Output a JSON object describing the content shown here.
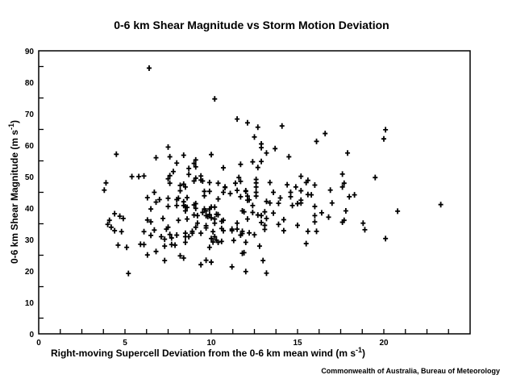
{
  "chart_data": {
    "type": "scatter",
    "title": "0-6 km Shear Magnitude vs Storm Motion Deviation",
    "xlabel": {
      "main": "Right-moving Supercell Deviation from the 0-6 km mean wind (m s",
      "sup": "-1",
      "end": ")"
    },
    "ylabel": {
      "main": "0-6 km Shear Magnitude (m s",
      "sup": "-1",
      "end": ")"
    },
    "xlim": [
      0,
      25
    ],
    "ylim": [
      0,
      90
    ],
    "xticks": [
      "0",
      "5",
      "10",
      "15",
      "20"
    ],
    "yticks": [
      "0",
      "10",
      "20",
      "30",
      "40",
      "50",
      "60",
      "70",
      "80",
      "90"
    ],
    "grid": false,
    "marker": "plus",
    "color": "#000000",
    "points": [
      [
        6.4,
        84.5
      ],
      [
        10.2,
        74.7
      ],
      [
        11.5,
        68.3
      ],
      [
        12.1,
        67.1
      ],
      [
        4.5,
        57.1
      ],
      [
        6.8,
        56.0
      ],
      [
        7.5,
        59.4
      ],
      [
        7.6,
        56.3
      ],
      [
        8.4,
        56.8
      ],
      [
        10.0,
        57.0
      ],
      [
        3.9,
        48.0
      ],
      [
        5.4,
        50.0
      ],
      [
        5.8,
        50.0
      ],
      [
        6.1,
        50.2
      ],
      [
        7.5,
        49.3
      ],
      [
        7.6,
        50.3
      ],
      [
        7.6,
        47.9
      ],
      [
        7.8,
        51.6
      ],
      [
        8.0,
        54.3
      ],
      [
        8.7,
        52.6
      ],
      [
        8.7,
        50.7
      ],
      [
        9.0,
        54.2
      ],
      [
        9.1,
        55.3
      ],
      [
        9.1,
        53.1
      ],
      [
        9.0,
        48.6
      ],
      [
        9.1,
        49.5
      ],
      [
        9.4,
        50.2
      ],
      [
        9.4,
        48.9
      ],
      [
        9.5,
        48.6
      ],
      [
        9.9,
        48.1
      ],
      [
        10.4,
        47.9
      ],
      [
        10.7,
        52.8
      ],
      [
        10.8,
        46.7
      ],
      [
        11.4,
        47.9
      ],
      [
        11.6,
        49.7
      ],
      [
        11.7,
        53.9
      ],
      [
        11.7,
        48.5
      ],
      [
        8.2,
        47.2
      ],
      [
        8.4,
        47.6
      ],
      [
        8.5,
        46.7
      ],
      [
        3.8,
        45.7
      ],
      [
        12.7,
        65.7
      ],
      [
        14.1,
        66.1
      ],
      [
        12.5,
        62.6
      ],
      [
        12.9,
        60.4
      ],
      [
        12.9,
        59.2
      ],
      [
        13.2,
        57.5
      ],
      [
        13.7,
        58.9
      ],
      [
        14.5,
        56.3
      ],
      [
        16.1,
        61.2
      ],
      [
        16.6,
        63.7
      ],
      [
        17.9,
        57.5
      ],
      [
        20.1,
        64.9
      ],
      [
        20.0,
        62.0
      ],
      [
        12.4,
        54.7
      ],
      [
        12.9,
        54.8
      ],
      [
        12.7,
        52.9
      ],
      [
        15.2,
        50.1
      ],
      [
        15.6,
        48.8
      ],
      [
        15.5,
        48.1
      ],
      [
        16.0,
        47.3
      ],
      [
        17.6,
        50.8
      ],
      [
        17.7,
        47.9
      ],
      [
        17.6,
        46.7
      ],
      [
        19.5,
        49.7
      ],
      [
        12.6,
        49.1
      ],
      [
        12.6,
        48.0
      ],
      [
        12.6,
        46.7
      ],
      [
        13.4,
        48.1
      ],
      [
        14.4,
        47.4
      ],
      [
        14.9,
        46.7
      ],
      [
        12.6,
        45.0
      ],
      [
        12.6,
        43.8
      ],
      [
        13.6,
        45.0
      ],
      [
        14.0,
        43.2
      ],
      [
        13.9,
        41.5
      ],
      [
        13.2,
        42.1
      ],
      [
        13.4,
        41.6
      ],
      [
        14.6,
        45.0
      ],
      [
        14.6,
        43.6
      ],
      [
        14.7,
        40.8
      ],
      [
        15.2,
        45.5
      ],
      [
        15.0,
        41.4
      ],
      [
        15.2,
        42.5
      ],
      [
        15.2,
        41.6
      ],
      [
        15.6,
        44.3
      ],
      [
        15.8,
        44.2
      ],
      [
        16.0,
        40.5
      ],
      [
        16.9,
        45.7
      ],
      [
        17.0,
        41.6
      ],
      [
        18.0,
        43.6
      ],
      [
        18.3,
        44.2
      ],
      [
        17.8,
        39.1
      ],
      [
        16.4,
        38.5
      ],
      [
        16.0,
        37.6
      ],
      [
        16.0,
        35.6
      ],
      [
        16.8,
        37.1
      ],
      [
        17.6,
        35.5
      ],
      [
        17.7,
        36.1
      ],
      [
        18.8,
        35.2
      ],
      [
        18.9,
        33.1
      ],
      [
        20.1,
        30.3
      ],
      [
        20.8,
        39.0
      ],
      [
        23.3,
        41.1
      ],
      [
        15.6,
        32.6
      ],
      [
        16.1,
        32.6
      ],
      [
        15.5,
        28.7
      ],
      [
        15.0,
        34.5
      ],
      [
        14.2,
        36.3
      ],
      [
        13.9,
        34.8
      ],
      [
        14.2,
        32.8
      ],
      [
        13.6,
        38.4
      ],
      [
        13.1,
        38.8
      ],
      [
        13.2,
        36.7
      ],
      [
        13.1,
        34.5
      ],
      [
        13.1,
        33.2
      ],
      [
        12.9,
        35.4
      ],
      [
        12.7,
        37.8
      ],
      [
        12.9,
        37.6
      ],
      [
        12.4,
        40.8
      ],
      [
        12.4,
        38.6
      ],
      [
        12.1,
        36.5
      ],
      [
        12.2,
        32.1
      ],
      [
        12.5,
        31.5
      ],
      [
        11.8,
        39.1
      ],
      [
        11.8,
        32.6
      ],
      [
        12.0,
        29.1
      ],
      [
        12.8,
        27.9
      ],
      [
        11.8,
        25.6
      ],
      [
        13.0,
        23.3
      ],
      [
        12.0,
        19.8
      ],
      [
        13.2,
        19.3
      ],
      [
        12.1,
        43.8
      ],
      [
        12.1,
        42.5
      ],
      [
        12.0,
        45.5
      ],
      [
        5.2,
        19.2
      ],
      [
        4.4,
        38.2
      ],
      [
        4.7,
        37.4
      ],
      [
        4.9,
        36.7
      ],
      [
        4.1,
        36.1
      ],
      [
        4.0,
        34.8
      ],
      [
        4.2,
        33.9
      ],
      [
        4.4,
        32.8
      ],
      [
        4.8,
        32.5
      ],
      [
        4.6,
        28.2
      ],
      [
        5.1,
        27.5
      ],
      [
        5.9,
        28.5
      ],
      [
        6.1,
        28.4
      ],
      [
        6.1,
        32.5
      ],
      [
        6.3,
        25.1
      ],
      [
        6.5,
        31.3
      ],
      [
        6.3,
        36.2
      ],
      [
        6.5,
        35.6
      ],
      [
        6.5,
        39.7
      ],
      [
        6.3,
        43.3
      ],
      [
        6.7,
        45.0
      ],
      [
        6.8,
        41.9
      ],
      [
        7.0,
        42.7
      ],
      [
        6.7,
        33.0
      ],
      [
        6.8,
        26.2
      ],
      [
        7.1,
        30.9
      ],
      [
        7.2,
        36.7
      ],
      [
        7.3,
        30.1
      ],
      [
        7.3,
        27.9
      ],
      [
        7.3,
        23.3
      ],
      [
        7.4,
        33.3
      ],
      [
        7.5,
        33.9
      ],
      [
        7.5,
        43.1
      ],
      [
        7.5,
        40.5
      ],
      [
        7.6,
        31.6
      ],
      [
        7.7,
        30.5
      ],
      [
        7.7,
        28.4
      ],
      [
        7.9,
        28.2
      ],
      [
        8.0,
        31.4
      ],
      [
        8.0,
        40.8
      ],
      [
        8.0,
        42.7
      ],
      [
        8.1,
        43.1
      ],
      [
        8.2,
        45.5
      ],
      [
        8.1,
        36.1
      ],
      [
        8.2,
        24.8
      ],
      [
        8.4,
        24.1
      ],
      [
        8.4,
        40.8
      ],
      [
        8.5,
        39.1
      ],
      [
        8.5,
        32.0
      ],
      [
        8.5,
        30.9
      ],
      [
        8.5,
        29.1
      ],
      [
        8.6,
        36.5
      ],
      [
        8.6,
        40.2
      ],
      [
        8.6,
        43.3
      ],
      [
        8.7,
        30.9
      ],
      [
        8.9,
        32.0
      ],
      [
        9.0,
        37.8
      ],
      [
        9.2,
        37.6
      ],
      [
        9.0,
        41.0
      ],
      [
        9.1,
        41.4
      ],
      [
        9.1,
        39.9
      ],
      [
        9.1,
        33.9
      ],
      [
        9.2,
        35.2
      ],
      [
        9.4,
        32.0
      ],
      [
        9.4,
        22.0
      ],
      [
        9.5,
        38.6
      ],
      [
        9.6,
        45.3
      ],
      [
        9.6,
        43.9
      ],
      [
        9.9,
        45.3
      ],
      [
        9.6,
        39.7
      ],
      [
        9.7,
        39.1
      ],
      [
        9.9,
        39.7
      ],
      [
        9.7,
        34.4
      ],
      [
        9.7,
        33.7
      ],
      [
        9.7,
        23.4
      ],
      [
        9.9,
        27.5
      ],
      [
        10.0,
        22.8
      ],
      [
        9.7,
        37.6
      ],
      [
        9.9,
        37.9
      ],
      [
        10.0,
        36.9
      ],
      [
        10.0,
        40.3
      ],
      [
        10.2,
        40.3
      ],
      [
        10.0,
        30.3
      ],
      [
        10.1,
        29.2
      ],
      [
        10.2,
        30.9
      ],
      [
        10.1,
        32.5
      ],
      [
        10.2,
        35.2
      ],
      [
        10.2,
        36.5
      ],
      [
        10.4,
        42.9
      ],
      [
        10.4,
        37.9
      ],
      [
        10.4,
        29.1
      ],
      [
        10.6,
        33.5
      ],
      [
        10.7,
        32.8
      ],
      [
        10.6,
        29.4
      ],
      [
        10.7,
        36.1
      ],
      [
        10.6,
        35.8
      ],
      [
        10.7,
        45.0
      ],
      [
        10.8,
        46.5
      ],
      [
        11.1,
        44.6
      ],
      [
        11.2,
        32.8
      ],
      [
        11.2,
        33.3
      ],
      [
        11.2,
        21.3
      ],
      [
        11.3,
        29.7
      ],
      [
        11.5,
        35.2
      ],
      [
        11.5,
        45.6
      ],
      [
        11.5,
        33.3
      ],
      [
        11.7,
        43.6
      ],
      [
        11.9,
        38.8
      ],
      [
        11.8,
        31.9
      ],
      [
        11.7,
        31.4
      ],
      [
        11.9,
        25.8
      ],
      [
        12.0,
        45.3
      ],
      [
        12.2,
        42.6
      ],
      [
        8.4,
        42.0
      ],
      [
        8.5,
        40.4
      ],
      [
        8.9,
        32.6
      ],
      [
        9.8,
        37.3
      ],
      [
        10.3,
        29.8
      ],
      [
        10.3,
        38.0
      ]
    ]
  },
  "credit": "Commonwealth of Australia, Bureau of Meteorology"
}
